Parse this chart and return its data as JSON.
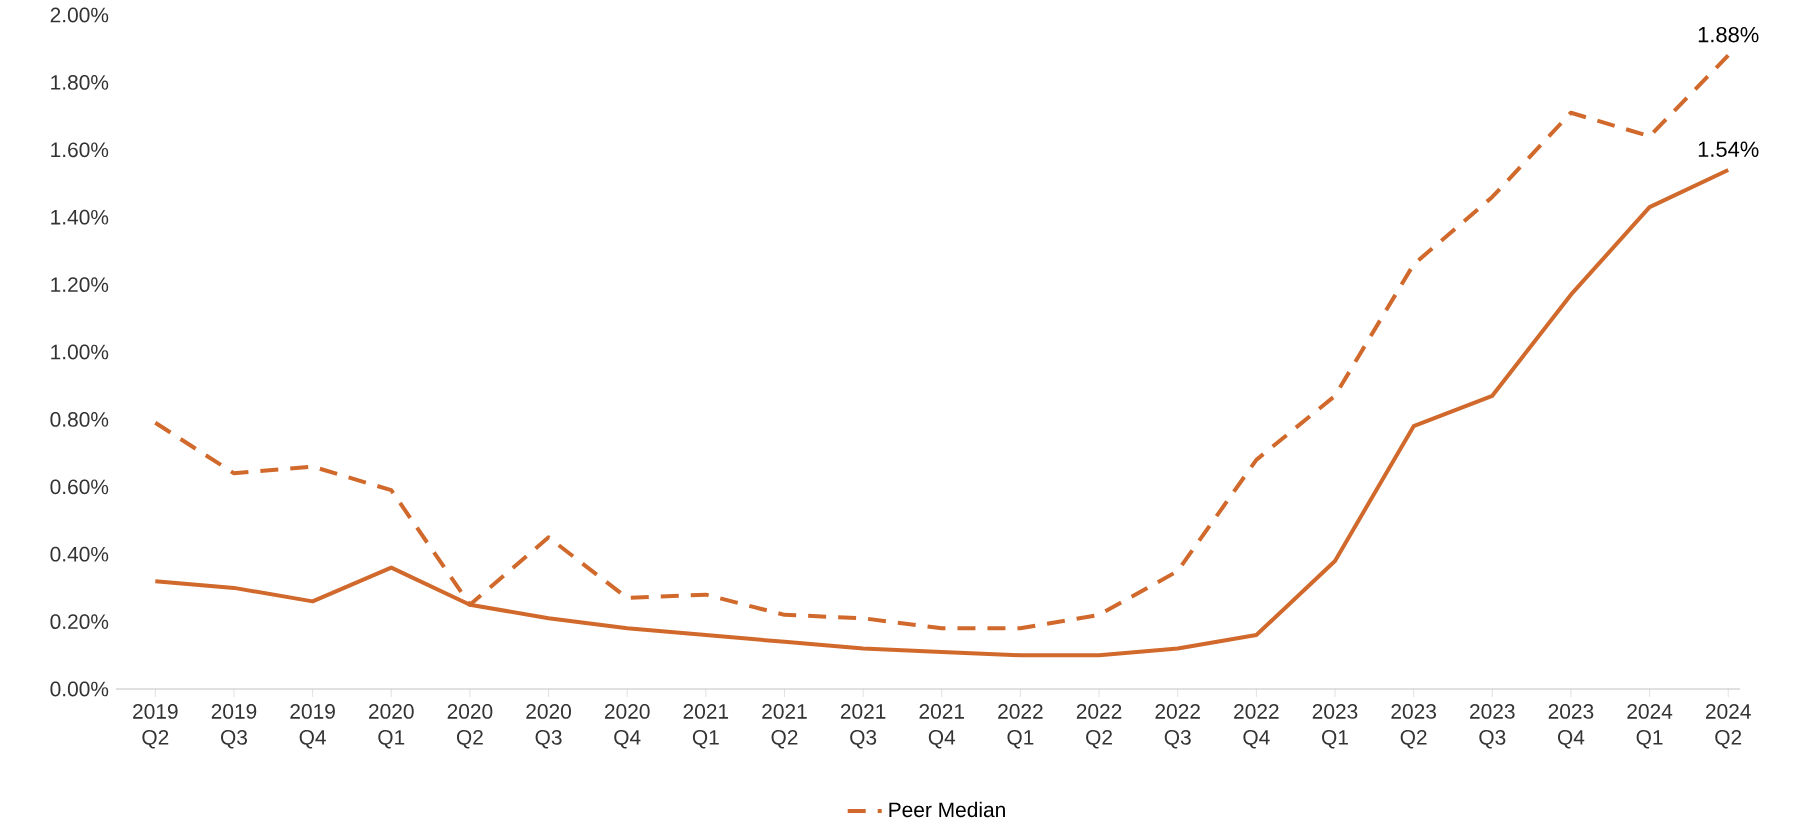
{
  "chart_data": {
    "type": "line",
    "categories": [
      "2019 Q2",
      "2019 Q3",
      "2019 Q4",
      "2020 Q1",
      "2020 Q2",
      "2020 Q3",
      "2020 Q4",
      "2021 Q1",
      "2021 Q2",
      "2021 Q3",
      "2021 Q4",
      "2022 Q1",
      "2022 Q2",
      "2022 Q3",
      "2022 Q4",
      "2023 Q1",
      "2023 Q2",
      "2023 Q3",
      "2023 Q4",
      "2024 Q1",
      "2024 Q2"
    ],
    "series": [
      {
        "color": "#d0692b",
        "line_style": "solid",
        "values": [
          0.32,
          0.3,
          0.26,
          0.36,
          0.25,
          0.21,
          0.18,
          0.16,
          0.14,
          0.12,
          0.11,
          0.1,
          0.1,
          0.12,
          0.16,
          0.38,
          0.78,
          0.87,
          1.17,
          1.43,
          1.54
        ],
        "value_labels": [
          null,
          null,
          null,
          null,
          null,
          null,
          null,
          null,
          null,
          null,
          null,
          null,
          null,
          null,
          null,
          null,
          null,
          null,
          null,
          null,
          "1.54%"
        ]
      },
      {
        "name": "Peer Median",
        "color": "#d0692b",
        "line_style": "dashed",
        "values": [
          0.79,
          0.64,
          0.66,
          0.59,
          0.25,
          0.45,
          0.27,
          0.28,
          0.22,
          0.21,
          0.18,
          0.18,
          0.22,
          0.35,
          0.68,
          0.87,
          1.26,
          1.46,
          1.71,
          1.64,
          1.88
        ],
        "value_labels": [
          null,
          null,
          null,
          null,
          null,
          null,
          null,
          null,
          null,
          null,
          null,
          null,
          null,
          null,
          null,
          null,
          null,
          null,
          null,
          null,
          "1.88%"
        ]
      }
    ],
    "ylim": [
      0,
      2
    ],
    "yticks": [
      {
        "value": 0,
        "label": "0.00%"
      },
      {
        "value": 0.2,
        "label": "0.20%"
      },
      {
        "value": 0.4,
        "label": "0.40%"
      },
      {
        "value": 0.6,
        "label": "0.60%"
      },
      {
        "value": 0.8,
        "label": "0.80%"
      },
      {
        "value": 1.0,
        "label": "1.00%"
      },
      {
        "value": 1.2,
        "label": "1.20%"
      },
      {
        "value": 1.4,
        "label": "1.40%"
      },
      {
        "value": 1.6,
        "label": "1.60%"
      },
      {
        "value": 1.8,
        "label": "1.80%"
      },
      {
        "value": 2.0,
        "label": "2.00%"
      }
    ],
    "grid": false,
    "legend": "bottom",
    "marker": "none"
  }
}
